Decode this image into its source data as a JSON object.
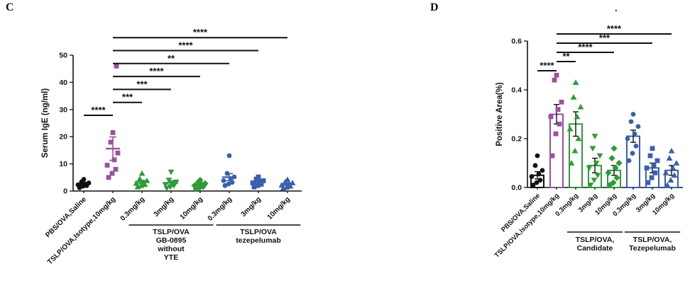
{
  "figure": {
    "panels": [
      {
        "label": "C",
        "chart_data": {
          "type": "scatter",
          "ylabel": "Serum IgE (ng/ml)",
          "ylim": [
            0,
            50
          ],
          "yticks": [
            "0",
            "10",
            "20",
            "30",
            "40",
            "50"
          ],
          "categories": [
            "PBS/OVA,Saline",
            "TSLP/OVA,Isotype,10mg/kg",
            "0.3mg/kg",
            "3mg/kg",
            "10mg/kg",
            "0.3mg/kg",
            "3mg/kg",
            "10mg/kg"
          ],
          "groups": [
            {
              "name": "PBS/OVA,Saline",
              "color": "#111111",
              "marker": "circle",
              "mean": 2.6,
              "sem": 0.4,
              "points": [
                1.2,
                1.8,
                2.0,
                2.3,
                2.6,
                3.0,
                3.4,
                4.3
              ]
            },
            {
              "name": "TSLP/OVA,Isotype,10mg/kg",
              "color": "#9d4f9e",
              "marker": "square",
              "mean": 15.6,
              "sem": 4.3,
              "points": [
                5.0,
                6.5,
                8.0,
                9.5,
                11.5,
                14.0,
                18.0,
                21.5,
                46.0
              ]
            },
            {
              "name": "0.3mg/kg",
              "color": "#2f9b38",
              "marker": "triangle",
              "mean": 3.3,
              "sem": 0.6,
              "points": [
                1.5,
                2.0,
                2.4,
                2.8,
                3.2,
                3.8,
                4.5,
                6.5
              ]
            },
            {
              "name": "3mg/kg",
              "color": "#2f9b38",
              "marker": "triangle-down",
              "mean": 3.0,
              "sem": 0.7,
              "points": [
                1.0,
                1.5,
                2.0,
                2.4,
                2.8,
                3.3,
                4.0,
                7.0
              ]
            },
            {
              "name": "10mg/kg",
              "color": "#2f9b38",
              "marker": "diamond",
              "mean": 2.3,
              "sem": 0.4,
              "points": [
                0.8,
                1.2,
                1.6,
                2.0,
                2.4,
                2.8,
                3.2,
                4.0
              ]
            },
            {
              "name": "0.3mg/kg",
              "color": "#3a5fae",
              "marker": "circle",
              "mean": 5.1,
              "sem": 1.3,
              "points": [
                2.0,
                2.6,
                3.2,
                3.8,
                4.4,
                5.2,
                6.5,
                13.0
              ]
            },
            {
              "name": "3mg/kg",
              "color": "#3a5fae",
              "marker": "square",
              "mean": 3.2,
              "sem": 0.45,
              "points": [
                1.5,
                2.0,
                2.5,
                3.0,
                3.4,
                3.8,
                4.4,
                5.2
              ]
            },
            {
              "name": "10mg/kg",
              "color": "#3a5fae",
              "marker": "triangle",
              "mean": 2.5,
              "sem": 0.4,
              "points": [
                1.0,
                1.4,
                1.8,
                2.2,
                2.6,
                3.0,
                3.4,
                4.2
              ]
            }
          ],
          "significance": [
            {
              "from": 0,
              "to": 1,
              "label": "****"
            },
            {
              "from": 1,
              "to": 2,
              "label": "***"
            },
            {
              "from": 1,
              "to": 3,
              "label": "***"
            },
            {
              "from": 1,
              "to": 4,
              "label": "****"
            },
            {
              "from": 1,
              "to": 5,
              "label": "**"
            },
            {
              "from": 1,
              "to": 6,
              "label": "****"
            },
            {
              "from": 1,
              "to": 7,
              "label": "****"
            }
          ],
          "axis_groups": [
            {
              "lines": [
                "TSLP/OVA",
                "GB-0895",
                "without",
                "YTE"
              ],
              "from": 2,
              "to": 4
            },
            {
              "lines": [
                "TSLP/OVA",
                "tezepelumab"
              ],
              "from": 5,
              "to": 7
            }
          ]
        }
      },
      {
        "label": "D",
        "annotation_dot": ".",
        "chart_data": {
          "type": "bar",
          "ylabel": "Positive Area(%)",
          "ylim": [
            0,
            0.6
          ],
          "yticks": [
            "0.0",
            "0.2",
            "0.4",
            "0.6"
          ],
          "categories": [
            "PBS/OVA,Saline",
            "TSLP/OVA,Isotype,10mg/kg",
            "0.3mg/kg",
            "3mg/kg",
            "10mg/kg",
            "0.3mg/kg",
            "3mg/kg",
            "10mg/kg"
          ],
          "groups": [
            {
              "name": "PBS/OVA,Saline",
              "color": "#111111",
              "marker": "circle",
              "mean": 0.05,
              "sem": 0.015,
              "points": [
                0.01,
                0.02,
                0.03,
                0.045,
                0.055,
                0.07,
                0.09,
                0.13
              ]
            },
            {
              "name": "TSLP/OVA,Isotype,10mg/kg",
              "color": "#9d4f9e",
              "marker": "square",
              "mean": 0.3,
              "sem": 0.04,
              "points": [
                0.13,
                0.22,
                0.26,
                0.29,
                0.32,
                0.35,
                0.44,
                0.46
              ]
            },
            {
              "name": "0.3mg/kg",
              "color": "#2f9b38",
              "marker": "triangle",
              "mean": 0.26,
              "sem": 0.05,
              "points": [
                0.1,
                0.15,
                0.2,
                0.24,
                0.29,
                0.33,
                0.37,
                0.43
              ]
            },
            {
              "name": "3mg/kg",
              "color": "#2f9b38",
              "marker": "triangle-down",
              "mean": 0.09,
              "sem": 0.03,
              "points": [
                0.01,
                0.03,
                0.05,
                0.08,
                0.1,
                0.13,
                0.16,
                0.21
              ]
            },
            {
              "name": "10mg/kg",
              "color": "#2f9b38",
              "marker": "diamond",
              "mean": 0.07,
              "sem": 0.02,
              "points": [
                0.01,
                0.02,
                0.04,
                0.06,
                0.08,
                0.1,
                0.12,
                0.16
              ]
            },
            {
              "name": "0.3mg/kg",
              "color": "#3a5fae",
              "marker": "circle",
              "mean": 0.21,
              "sem": 0.025,
              "points": [
                0.11,
                0.14,
                0.17,
                0.2,
                0.22,
                0.25,
                0.27,
                0.3
              ]
            },
            {
              "name": "3mg/kg",
              "color": "#3a5fae",
              "marker": "square",
              "mean": 0.08,
              "sem": 0.02,
              "points": [
                0.02,
                0.04,
                0.06,
                0.08,
                0.09,
                0.11,
                0.13,
                0.16
              ]
            },
            {
              "name": "10mg/kg",
              "color": "#3a5fae",
              "marker": "triangle",
              "mean": 0.07,
              "sem": 0.02,
              "points": [
                0.01,
                0.03,
                0.05,
                0.06,
                0.08,
                0.1,
                0.12,
                0.15
              ]
            }
          ],
          "significance": [
            {
              "from": 0,
              "to": 1,
              "label": "****"
            },
            {
              "from": 1,
              "to": 2,
              "label": "**"
            },
            {
              "from": 1,
              "to": 4,
              "label": "****"
            },
            {
              "from": 1,
              "to": 6,
              "label": "***"
            },
            {
              "from": 1,
              "to": 7,
              "label": "****"
            }
          ],
          "axis_groups": [
            {
              "lines": [
                "TSLP/OVA,",
                "Candidate"
              ],
              "from": 2,
              "to": 4
            },
            {
              "lines": [
                "TSLP/OVA,",
                "Tezepelumab"
              ],
              "from": 5,
              "to": 7
            }
          ]
        }
      }
    ]
  }
}
